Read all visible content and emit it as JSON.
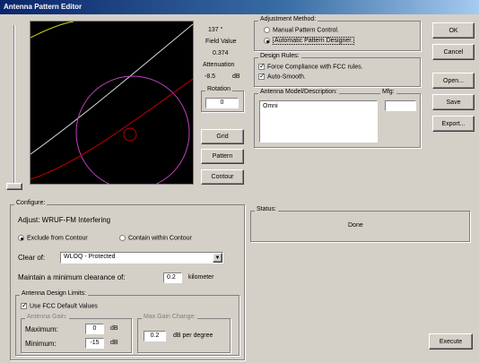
{
  "title": "Antenna Pattern Editor",
  "plot_info": {
    "angle": "137 °",
    "field_value_label": "Field Value",
    "field_value": "0.374",
    "attenuation_label": "Attenuation",
    "attenuation": "-8.5",
    "attenuation_unit": "dB"
  },
  "rotation": {
    "label": "Rotation",
    "value": "0"
  },
  "plot_buttons": {
    "grid": "Grid",
    "pattern": "Pattern",
    "contour": "Contour"
  },
  "adjustment": {
    "legend": "Adjustment Method:",
    "manual": "Manual Pattern Control.",
    "automatic": "Automatic Pattern Designer."
  },
  "design_rules": {
    "legend": "Design Rules:",
    "force": "Force Compliance with FCC rules.",
    "smooth": "Auto-Smooth."
  },
  "model": {
    "label": "Antenna Model/Description:",
    "value": "Omni",
    "mfg_label": "Mfg:",
    "mfg_value": ""
  },
  "right_buttons": {
    "ok": "OK",
    "cancel": "Cancel",
    "open": "Open...",
    "save": "Save",
    "export": "Export..."
  },
  "configure": {
    "legend": "Configure:",
    "adjust": "Adjust: WRUF-FM Interfering",
    "exclude": "Exclude from Contour",
    "contain": "Contain within Contour",
    "clear_of_label": "Clear of:",
    "clear_of_value": "WLOQ - Protected",
    "maintain_label": "Maintain a minimum clearance of:",
    "maintain_value": "0.2",
    "maintain_unit": "kilometer",
    "limits_legend": "Antenna Design Limits:",
    "use_fcc": "Use FCC Default Values",
    "gain_legend": "Antenna Gain:",
    "maximum_label": "Maximum:",
    "maximum_value": "0",
    "minimum_label": "Minimum:",
    "minimum_value": "-15",
    "db": "dB",
    "max_change_legend": "Max Gain Change:",
    "max_change_value": "0.2",
    "max_change_unit": "dB per degree"
  },
  "status": {
    "legend": "Status:",
    "value": "Done"
  },
  "execute": "Execute",
  "colors": {
    "plot_bg": "#000000",
    "circle": "#c040c0",
    "curve_red": "#c00000",
    "curve_white": "#d8d8d8",
    "curve_yellow": "#d8d820"
  }
}
